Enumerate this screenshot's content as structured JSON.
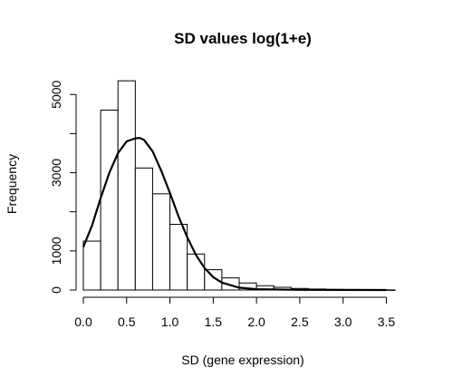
{
  "chart_data": {
    "type": "bar",
    "title": "SD values log(1+e)",
    "xlabel": "SD (gene expression)",
    "ylabel": "Frequency",
    "xlim": [
      0,
      3.6
    ],
    "ylim": [
      0,
      5400
    ],
    "x_ticks": [
      "0.0",
      "0.5",
      "1.0",
      "1.5",
      "2.0",
      "2.5",
      "3.0",
      "3.5"
    ],
    "y_ticks": [
      "0",
      "1000",
      "3000",
      "5000"
    ],
    "bins": [
      {
        "from": 0.0,
        "to": 0.2,
        "count": 1250
      },
      {
        "from": 0.2,
        "to": 0.4,
        "count": 4600
      },
      {
        "from": 0.4,
        "to": 0.6,
        "count": 5350
      },
      {
        "from": 0.6,
        "to": 0.8,
        "count": 3120
      },
      {
        "from": 0.8,
        "to": 1.0,
        "count": 2460
      },
      {
        "from": 1.0,
        "to": 1.2,
        "count": 1680
      },
      {
        "from": 1.2,
        "to": 1.4,
        "count": 920
      },
      {
        "from": 1.4,
        "to": 1.6,
        "count": 520
      },
      {
        "from": 1.6,
        "to": 1.8,
        "count": 310
      },
      {
        "from": 1.8,
        "to": 2.0,
        "count": 180
      },
      {
        "from": 2.0,
        "to": 2.2,
        "count": 110
      },
      {
        "from": 2.2,
        "to": 2.4,
        "count": 70
      },
      {
        "from": 2.4,
        "to": 2.6,
        "count": 40
      },
      {
        "from": 2.6,
        "to": 2.8,
        "count": 25
      },
      {
        "from": 2.8,
        "to": 3.0,
        "count": 15
      },
      {
        "from": 3.0,
        "to": 3.2,
        "count": 10
      },
      {
        "from": 3.2,
        "to": 3.4,
        "count": 5
      },
      {
        "from": 3.4,
        "to": 3.6,
        "count": 3
      }
    ],
    "density_curve": {
      "type": "line",
      "x": [
        0.0,
        0.1,
        0.2,
        0.3,
        0.4,
        0.5,
        0.6,
        0.65,
        0.7,
        0.8,
        0.9,
        1.0,
        1.1,
        1.2,
        1.3,
        1.4,
        1.5,
        1.6,
        1.8,
        2.0,
        2.5,
        3.0,
        3.5
      ],
      "y": [
        1100,
        1650,
        2350,
        3000,
        3500,
        3800,
        3880,
        3890,
        3840,
        3550,
        3050,
        2480,
        1880,
        1350,
        900,
        560,
        330,
        190,
        60,
        20,
        5,
        2,
        1
      ]
    },
    "grid": false
  }
}
